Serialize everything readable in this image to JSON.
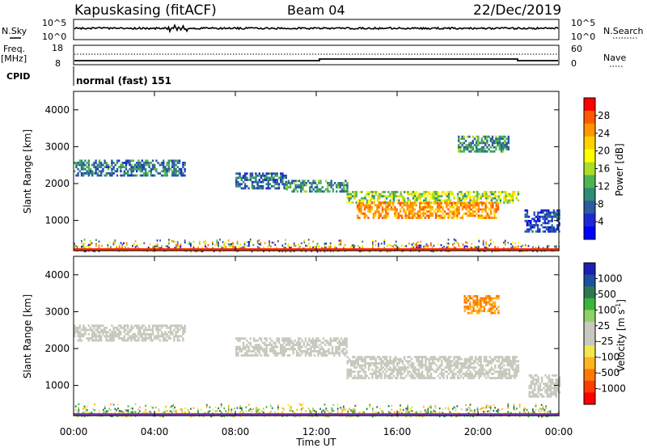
{
  "header": {
    "station": "Kapuskasing (fitACF)",
    "beam": "Beam 04",
    "date": "22/Dec/2019"
  },
  "status": {
    "nsky_label": "N.Sky",
    "nsearch_label": "N.Search",
    "nsky_ticks": [
      "10^5",
      "10^0"
    ],
    "nsearch_ticks": [
      "10^5",
      "10^0"
    ],
    "freq_label": "Freq.",
    "freq_unit": "[MHz]",
    "freq_ticks": [
      "18",
      "8"
    ],
    "nave_label": "Nave",
    "nave_ticks": [
      "60",
      "0"
    ],
    "cpid_label": "CPID",
    "cpid_value": "normal (fast) 151"
  },
  "power_panel": {
    "ylabel": "Slant Range [km]",
    "yticks": [
      "4000",
      "3000",
      "2000",
      "1000"
    ],
    "colorbar_label": "Power [dB]",
    "colorbar_ticks": [
      "28",
      "24",
      "20",
      "16",
      "12",
      "8",
      "4"
    ],
    "colors": [
      "#ff0000",
      "#ff5a00",
      "#ff9600",
      "#ffd200",
      "#ffff00",
      "#aadc28",
      "#50b450",
      "#2d8c78",
      "#2d5aa0",
      "#1e28d2",
      "#0000ff"
    ]
  },
  "velocity_panel": {
    "ylabel": "Slant Range [km]",
    "yticks": [
      "4000",
      "3000",
      "2000",
      "1000"
    ],
    "colorbar_label": "Velocity [m s",
    "colorbar_sup": "-1",
    "colorbar_label_end": "]",
    "colorbar_ticks": [
      "1000",
      "500",
      "100",
      "25",
      "-25",
      "-100",
      "-500",
      "-1000"
    ],
    "colors": [
      "#1e1eb4",
      "#1e50a0",
      "#2d7850",
      "#3cb43c",
      "#8cd264",
      "#c8c8be",
      "#c8c8be",
      "#f0e650",
      "#ffb41e",
      "#ff7800",
      "#ff3c00",
      "#ff0000"
    ]
  },
  "xaxis": {
    "label": "Time UT",
    "ticks": [
      "00:00",
      "04:00",
      "08:00",
      "12:00",
      "16:00",
      "20:00",
      "00:00"
    ]
  },
  "chart_data": {
    "type": "heatmap",
    "title": "Kapuskasing (fitACF)",
    "xlabel": "Time UT",
    "ylabel": "Slant Range [km]",
    "xlim": [
      0,
      24
    ],
    "ylim": [
      180,
      4500
    ],
    "frequency_mhz": 10.5,
    "power_regions": [
      {
        "t": [
          0,
          5.5
        ],
        "r": [
          2250,
          2650
        ],
        "value_db": 11
      },
      {
        "t": [
          8,
          10.5
        ],
        "r": [
          1850,
          2300
        ],
        "value_db": 10
      },
      {
        "t": [
          10.5,
          13.5
        ],
        "r": [
          1800,
          2100
        ],
        "value_db": 12
      },
      {
        "t": [
          13.5,
          22
        ],
        "r": [
          1500,
          1800
        ],
        "value_db": 16
      },
      {
        "t": [
          14,
          21
        ],
        "r": [
          1050,
          1500
        ],
        "value_db": 24
      },
      {
        "t": [
          19,
          21.5
        ],
        "r": [
          2900,
          3300
        ],
        "value_db": 12
      },
      {
        "t": [
          22.3,
          24
        ],
        "r": [
          700,
          1300
        ],
        "value_db": 8
      }
    ],
    "velocity_regions": [
      {
        "t": [
          0,
          5.5
        ],
        "r": [
          2250,
          2650
        ],
        "value_ms": 0
      },
      {
        "t": [
          8,
          13.5
        ],
        "r": [
          1800,
          2300
        ],
        "value_ms": 0
      },
      {
        "t": [
          13.5,
          22
        ],
        "r": [
          1200,
          1800
        ],
        "value_ms": 0
      },
      {
        "t": [
          19.3,
          21
        ],
        "r": [
          2950,
          3450
        ],
        "value_ms": -300
      },
      {
        "t": [
          22.5,
          24
        ],
        "r": [
          700,
          1300
        ],
        "value_ms": 0
      }
    ]
  }
}
